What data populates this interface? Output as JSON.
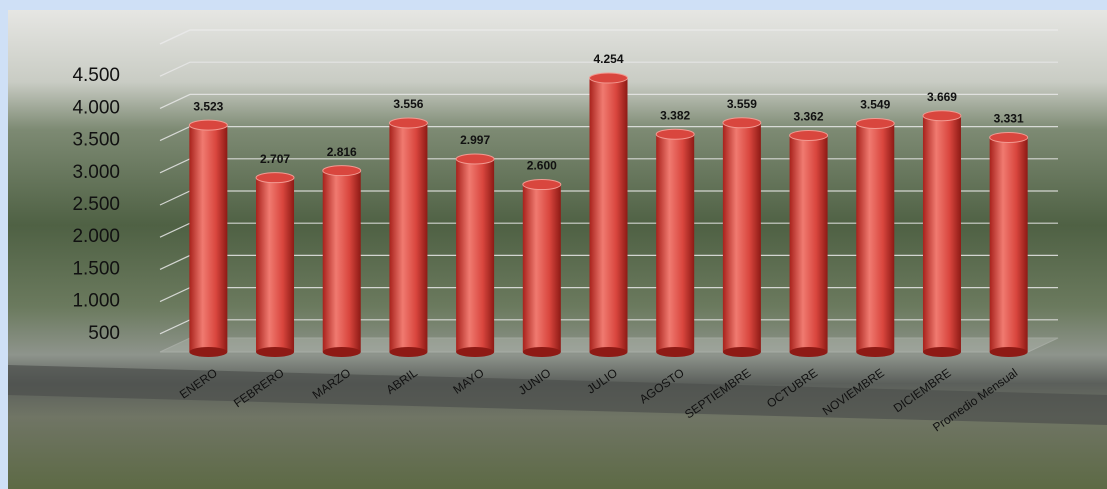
{
  "chart_data": {
    "type": "bar",
    "categories": [
      "ENERO",
      "FEBRERO",
      "MARZO",
      "ABRIL",
      "MAYO",
      "JUNIO",
      "JULIO",
      "AGOSTO",
      "SEPTIEMBRE",
      "OCTUBRE",
      "NOVIEMBRE",
      "DICIEMBRE",
      "Promedio Mensual"
    ],
    "values": [
      3523,
      2707,
      2816,
      3556,
      2997,
      2600,
      4254,
      3382,
      3559,
      3362,
      3549,
      3669,
      3331
    ],
    "value_labels": [
      "3.523",
      "2.707",
      "2.816",
      "3.556",
      "2.997",
      "2.600",
      "4.254",
      "3.382",
      "3.559",
      "3.362",
      "3.549",
      "3.669",
      "3.331"
    ],
    "color": "#d9463e",
    "ylim": [
      0,
      5000
    ],
    "yticks": [
      {
        "value": 500,
        "label": "500"
      },
      {
        "value": 1000,
        "label": "1.000"
      },
      {
        "value": 1500,
        "label": "1.500"
      },
      {
        "value": 2000,
        "label": "2.000"
      },
      {
        "value": 2500,
        "label": "2.500"
      },
      {
        "value": 3000,
        "label": "3.000"
      },
      {
        "value": 3500,
        "label": "3.500"
      },
      {
        "value": 4000,
        "label": "4.000"
      },
      {
        "value": 4500,
        "label": "4.500"
      }
    ],
    "grid": true
  }
}
